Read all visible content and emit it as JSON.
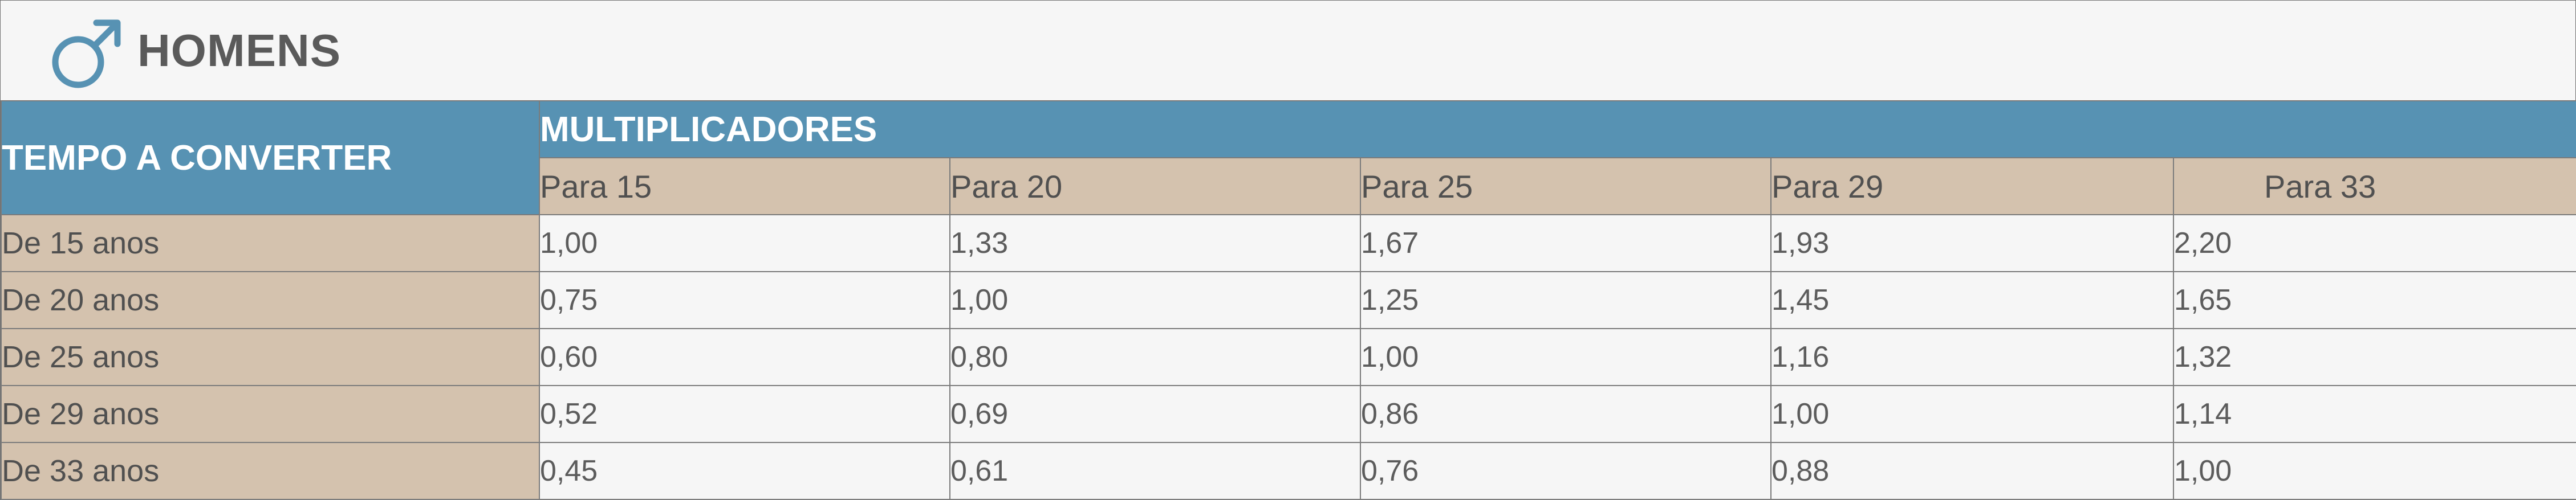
{
  "title": "HOMENS",
  "table": {
    "row_header_label": "TEMPO A CONVERTER",
    "group_header_label": "MULTIPLICADORES",
    "columns": [
      "Para 15",
      "Para 20",
      "Para 25",
      "Para 29",
      "Para 33"
    ],
    "rows": [
      {
        "label": "De 15 anos",
        "values": [
          "1,00",
          "1,33",
          "1,67",
          "1,93",
          "2,20"
        ]
      },
      {
        "label": "De 20 anos",
        "values": [
          "0,75",
          "1,00",
          "1,25",
          "1,45",
          "1,65"
        ]
      },
      {
        "label": "De 25 anos",
        "values": [
          "0,60",
          "0,80",
          "1,00",
          "1,16",
          "1,32"
        ]
      },
      {
        "label": "De 29 anos",
        "values": [
          "0,52",
          "0,69",
          "0,86",
          "1,00",
          "1,14"
        ]
      },
      {
        "label": "De 33 anos",
        "values": [
          "0,45",
          "0,61",
          "0,76",
          "0,88",
          "1,00"
        ]
      }
    ]
  },
  "icons": {
    "title_icon": "male-symbol-icon"
  },
  "colors": {
    "header_blue": "#5792b3",
    "header_tan": "#d4c2ae",
    "title_text": "#5a5a5a",
    "background": "#f6f6f6"
  }
}
